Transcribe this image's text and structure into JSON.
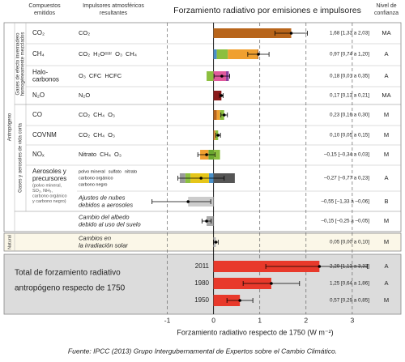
{
  "chart_data": {
    "type": "stacked-barh",
    "title": "Forzamiento radiativo por emisiones e impulsores",
    "xlabel": "Forzamiento radiativo respecto de 1750 (W m⁻²)",
    "columns": {
      "emitted": [
        "Compuestos",
        "emitidos"
      ],
      "drivers": [
        "Impulsores atmosféricos",
        "resultantes"
      ],
      "confidence": [
        "Nivel de",
        "confianza"
      ]
    },
    "groups": {
      "anthropogenic": "Antropógeno",
      "natural": "Natural",
      "ghg": [
        "Gases de efecto invernadero",
        "homogéneamente mezclados"
      ],
      "short_lived": "Gases y aerosoles de vida corta"
    },
    "xlim": [
      -1.5,
      3.3
    ],
    "xticks": [
      -1,
      0,
      1,
      2,
      3
    ],
    "grid": true,
    "positive_color": "#d7191c",
    "negative_color": "#2c4f9e",
    "rows": [
      {
        "compound": [
          "CO₂"
        ],
        "drivers": [
          {
            "label": "CO₂",
            "color": "#c8782a"
          }
        ],
        "segments": [
          {
            "color": "#b8651b",
            "value": 1.68
          }
        ],
        "total": 1.68,
        "range": [
          1.33,
          2.03
        ],
        "value_label": "1,68 [1,33 a 2,03]",
        "confidence": "MA"
      },
      {
        "compound": [
          "CH₄"
        ],
        "drivers": [
          {
            "label": "CO₂",
            "color": "#c8782a"
          },
          {
            "label": "H₂Oᵉˢᵗʳ",
            "color": "#4a90c8"
          },
          {
            "label": "O₃",
            "color": "#8cbf3f"
          },
          {
            "label": "CH₄",
            "color": "#f0a030"
          }
        ],
        "segments": [
          {
            "color": "#4a90c8",
            "value": 0.07
          },
          {
            "color": "#8cbf3f",
            "value": 0.24
          },
          {
            "color": "#f0a030",
            "value": 0.64
          },
          {
            "color": "#b8651b",
            "value": 0.02
          }
        ],
        "total": 0.97,
        "range": [
          0.74,
          1.2
        ],
        "value_label": "0,97 [0,74 a 1,20]",
        "confidence": "A"
      },
      {
        "compound": [
          "Halo-",
          "carbonos"
        ],
        "drivers": [
          {
            "label": "O₃",
            "color": "#8cbf3f"
          },
          {
            "label": "CFC",
            "color": "#e05a9c"
          },
          {
            "label": "HCFC",
            "color": "#8a3d9c"
          }
        ],
        "segments": [
          {
            "color": "#8cbf3f",
            "value": -0.15
          },
          {
            "color": "#e05a9c",
            "value": 0.27
          },
          {
            "color": "#8a3d9c",
            "value": 0.06
          }
        ],
        "total": 0.18,
        "range": [
          0.01,
          0.35
        ],
        "value_label": "0,18 [0,01 a 0,35]",
        "confidence": "A"
      },
      {
        "compound": [
          "N₂O"
        ],
        "drivers": [
          {
            "label": "N₂O",
            "color": "#8b1a1a"
          }
        ],
        "segments": [
          {
            "color": "#8b1a1a",
            "value": 0.17
          }
        ],
        "total": 0.17,
        "range": [
          0.13,
          0.21
        ],
        "value_label": "0,17 [0,13 a 0,21]",
        "confidence": "MA"
      },
      {
        "compound": [
          "CO"
        ],
        "drivers": [
          {
            "label": "CO₂",
            "color": "#c8782a"
          },
          {
            "label": "CH₄",
            "color": "#f0a030"
          },
          {
            "label": "O₃",
            "color": "#8cbf3f"
          }
        ],
        "segments": [
          {
            "color": "#b8651b",
            "value": 0.07
          },
          {
            "color": "#f0a030",
            "value": 0.07
          },
          {
            "color": "#8cbf3f",
            "value": 0.09
          }
        ],
        "total": 0.23,
        "range": [
          0.16,
          0.3
        ],
        "value_label": "0,23 [0,16 a 0,30]",
        "confidence": "M"
      },
      {
        "compound": [
          "COVNM"
        ],
        "drivers": [
          {
            "label": "CO₂",
            "color": "#c8782a"
          },
          {
            "label": "CH₄",
            "color": "#f0a030"
          },
          {
            "label": "O₃",
            "color": "#8cbf3f"
          }
        ],
        "segments": [
          {
            "color": "#b8651b",
            "value": 0.02
          },
          {
            "color": "#f0a030",
            "value": 0.02
          },
          {
            "color": "#8cbf3f",
            "value": 0.06
          }
        ],
        "total": 0.1,
        "range": [
          0.05,
          0.15
        ],
        "value_label": "0,10 [0,05 a 0,15]",
        "confidence": "M"
      },
      {
        "compound": [
          "NOₓ"
        ],
        "drivers": [
          {
            "label": "Nitrato",
            "color": "#6aa82f"
          },
          {
            "label": "CH₄",
            "color": "#f0a030"
          },
          {
            "label": "O₃",
            "color": "#8cbf3f"
          }
        ],
        "segments": [
          {
            "color": "#6aa82f",
            "value": -0.11
          },
          {
            "color": "#f0a030",
            "value": -0.18
          },
          {
            "color": "#8cbf3f",
            "value": 0.14
          }
        ],
        "total": -0.15,
        "range": [
          -0.34,
          0.03
        ],
        "value_label": "–0,15 [–0,34 a 0,03]",
        "confidence": "M"
      },
      {
        "compound": [
          "Aerosoles y",
          "precursores"
        ],
        "compound_note": [
          "(polvo mineral,",
          "SO₂, NH₃,",
          "carbono orgánico",
          "y carbono negro)"
        ],
        "drivers": [
          {
            "label": "polvo mineral",
            "color": "#4a90c8"
          },
          {
            "label": "sulfato",
            "color": "#d9b800"
          },
          {
            "label": "nitrato",
            "color": "#6aa82f"
          },
          {
            "label": "carbono orgánico",
            "color": "#777777"
          },
          {
            "label": "carbono negro",
            "color": "#555555"
          }
        ],
        "segments": [
          {
            "color": "#4a90c8",
            "value": -0.1
          },
          {
            "color": "#e6c619",
            "value": -0.4
          },
          {
            "color": "#8cbf3f",
            "value": -0.11
          },
          {
            "color": "#9a9a9a",
            "value": -0.12
          },
          {
            "color": "#555555",
            "value": 0.46
          }
        ],
        "total": -0.27,
        "range": [
          -0.77,
          0.23
        ],
        "value_label": "–0,27 [–0,77 a 0,23]",
        "confidence": "A"
      },
      {
        "driver_text": [
          "Ajustes de nubes",
          "debidos a aerosoles"
        ],
        "segments": [
          {
            "color": "#cccccc",
            "value": -0.55
          }
        ],
        "total": -0.55,
        "range": [
          -1.33,
          -0.06
        ],
        "value_label": "–0,55 [–1,33 a –0,06]",
        "confidence": "B"
      },
      {
        "driver_text": [
          "Cambio del albedo",
          "debido al uso del suelo"
        ],
        "segments": [
          {
            "color": "#aaaaaa",
            "value": -0.15
          }
        ],
        "total": -0.15,
        "range": [
          -0.25,
          -0.05
        ],
        "value_label": "–0,15 [–0,25 a –0,05]",
        "confidence": "M"
      },
      {
        "driver_text": [
          "Cambios en",
          "la irradiación solar"
        ],
        "segments": [
          {
            "color": "#bbbbbb",
            "value": 0.05
          }
        ],
        "total": 0.05,
        "range": [
          0.0,
          0.1
        ],
        "value_label": "0,05 [0,00 a 0,10]",
        "confidence": "M"
      }
    ],
    "totals_label": [
      "Total de forzamiento radiativo",
      "antropógeno respecto de 1750"
    ],
    "totals": [
      {
        "year": "2011",
        "color": "#e8392b",
        "total": 2.29,
        "range": [
          1.13,
          3.33
        ],
        "value_label": "2,29 [1,13 a 3,33]",
        "confidence": "A"
      },
      {
        "year": "1980",
        "color": "#e8392b",
        "total": 1.25,
        "range": [
          0.64,
          1.86
        ],
        "value_label": "1,25 [0,64 a 1,86]",
        "confidence": "A"
      },
      {
        "year": "1950",
        "color": "#e8392b",
        "total": 0.57,
        "range": [
          0.29,
          0.85
        ],
        "value_label": "0,57 [0,29 a 0,85]",
        "confidence": "M"
      }
    ],
    "source": "Fuente: IPCC (2013) Grupo Intergubernamental de Expertos sobre el Cambio Climático."
  }
}
